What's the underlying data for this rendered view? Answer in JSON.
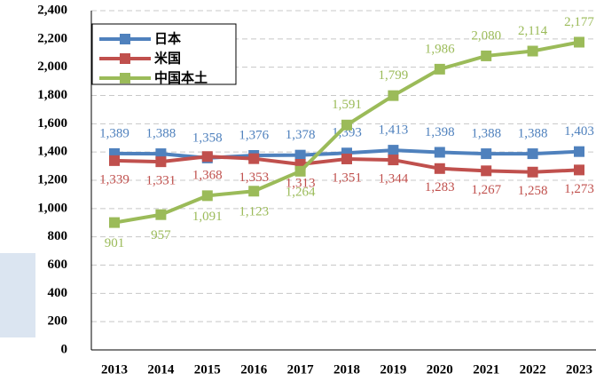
{
  "chart_data": {
    "type": "line",
    "categories": [
      "2013",
      "2014",
      "2015",
      "2016",
      "2017",
      "2018",
      "2019",
      "2020",
      "2021",
      "2022",
      "2023"
    ],
    "series": [
      {
        "name": "日本",
        "color": "#4f81bd",
        "values": [
          1389,
          1388,
          1358,
          1376,
          1378,
          1393,
          1413,
          1398,
          1388,
          1388,
          1403
        ],
        "value_labels": [
          "1,389",
          "1,388",
          "1,358",
          "1,376",
          "1,378",
          "1,393",
          "1,413",
          "1,398",
          "1,388",
          "1,388",
          "1,403"
        ]
      },
      {
        "name": "米国",
        "color": "#c0504d",
        "values": [
          1339,
          1331,
          1368,
          1353,
          1313,
          1351,
          1344,
          1283,
          1267,
          1258,
          1273
        ],
        "value_labels": [
          "1,339",
          "1,331",
          "1,368",
          "1,353",
          "1,313",
          "1,351",
          "1,344",
          "1,283",
          "1,267",
          "1,258",
          "1,273"
        ]
      },
      {
        "name": "中国本土",
        "color": "#9bbb59",
        "values": [
          901,
          957,
          1091,
          1123,
          1264,
          1591,
          1799,
          1986,
          2080,
          2114,
          2177
        ],
        "value_labels": [
          "901",
          "957",
          "1,091",
          "1,123",
          "1,264",
          "1,591",
          "1,799",
          "1,986",
          "2,080",
          "2,114",
          "2,177"
        ]
      }
    ],
    "ylim": [
      0,
      2400
    ],
    "yticks": [
      0,
      {
        "value": 200,
        "label": "200"
      },
      {
        "value": 400,
        "label": "400"
      },
      {
        "value": 600,
        "label": "600"
      },
      {
        "value": 800,
        "label": "800"
      },
      {
        "value": 1000,
        "label": "1,000"
      },
      {
        "value": 1200,
        "label": "1,200"
      },
      {
        "value": 1400,
        "label": "1,400"
      },
      {
        "value": 1600,
        "label": "1,600"
      },
      {
        "value": 1800,
        "label": "1,800"
      },
      {
        "value": 2000,
        "label": "2,000"
      },
      {
        "value": 2200,
        "label": "2,200"
      },
      {
        "value": 2400,
        "label": "2,400"
      }
    ],
    "grid": true,
    "legend": "top-left"
  }
}
